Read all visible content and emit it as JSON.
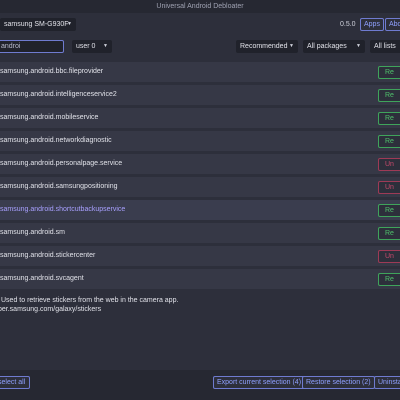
{
  "window": {
    "title": "Universal Android Debloater"
  },
  "topbar": {
    "device": "samsung SM-G930F",
    "version": "0.5.0",
    "apps_button": "Apps",
    "about_button": "About"
  },
  "filters": {
    "search_value": "androi",
    "user": "user 0",
    "recommendation": "Recommended",
    "package_state": "All packages",
    "list": "All lists"
  },
  "packages": [
    {
      "name": "samsung.android.bbc.fileprovider",
      "tag": "Recommended",
      "tag_short": "Re"
    },
    {
      "name": "samsung.android.intelligenceservice2",
      "tag": "Recommended",
      "tag_short": "Re"
    },
    {
      "name": "samsung.android.mobileservice",
      "tag": "Recommended",
      "tag_short": "Re"
    },
    {
      "name": "samsung.android.networkdiagnostic",
      "tag": "Recommended",
      "tag_short": "Re"
    },
    {
      "name": "samsung.android.personalpage.service",
      "tag": "Unsafe",
      "tag_short": "Un"
    },
    {
      "name": "samsung.android.samsungpositioning",
      "tag": "Unsafe",
      "tag_short": "Un"
    },
    {
      "name": "samsung.android.shortcutbackupservice",
      "tag": "Recommended",
      "tag_short": "Re"
    },
    {
      "name": "samsung.android.sm",
      "tag": "Recommended",
      "tag_short": "Re"
    },
    {
      "name": "samsung.android.stickercenter",
      "tag": "Unsafe",
      "tag_short": "Un"
    },
    {
      "name": "samsung.android.svcagent",
      "tag": "Recommended",
      "tag_short": "Re"
    }
  ],
  "description": {
    "line1": "Used to retrieve stickers from the web in the camera app.",
    "line2": "per.samsung.com/galaxy/stickers"
  },
  "bottombar": {
    "select_all": "select all",
    "export": "Export current selection (4)",
    "restore": "Restore selection (2)",
    "uninstall": "Uninstall"
  }
}
